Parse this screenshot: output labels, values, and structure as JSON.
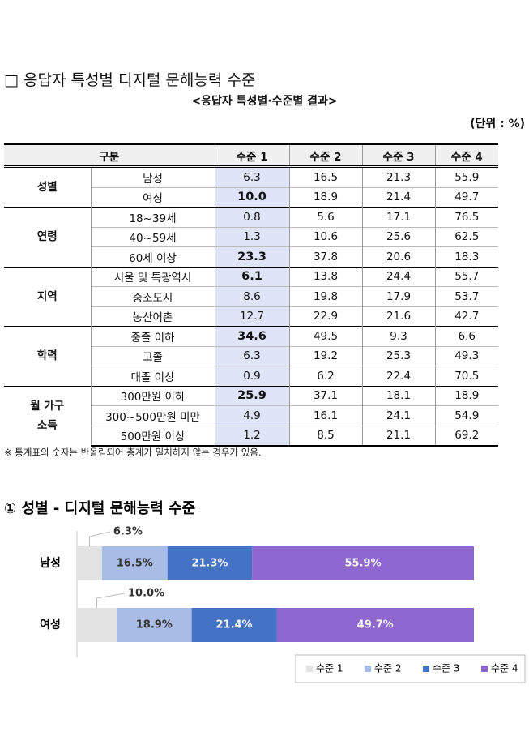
{
  "title": "□ 응답자 특성별 디지털 문해능력 수준",
  "table": {
    "caption": "<응답자 특성별·수준별 결과>",
    "unit": "(단위 : %)",
    "columns": [
      "구분",
      "수준 1",
      "수준 2",
      "수준 3",
      "수준 4"
    ],
    "groups": [
      {
        "label": [
          "성별"
        ],
        "rows": [
          {
            "label": "남성",
            "cells": [
              "6.3",
              "16.5",
              "21.3",
              "55.9"
            ],
            "emphasis": false
          },
          {
            "label": "여성",
            "cells": [
              "10.0",
              "18.9",
              "21.4",
              "49.7"
            ],
            "emphasis": true
          }
        ]
      },
      {
        "label": [
          "연령"
        ],
        "rows": [
          {
            "label": "18~39세",
            "cells": [
              "0.8",
              "5.6",
              "17.1",
              "76.5"
            ],
            "emphasis": false
          },
          {
            "label": "40~59세",
            "cells": [
              "1.3",
              "10.6",
              "25.6",
              "62.5"
            ],
            "emphasis": false
          },
          {
            "label": "60세 이상",
            "cells": [
              "23.3",
              "37.8",
              "20.6",
              "18.3"
            ],
            "emphasis": true
          }
        ]
      },
      {
        "label": [
          "지역"
        ],
        "rows": [
          {
            "label": "서울 및 특광역시",
            "cells": [
              "6.1",
              "13.8",
              "24.4",
              "55.7"
            ],
            "emphasis": true
          },
          {
            "label": "중소도시",
            "cells": [
              "8.6",
              "19.8",
              "17.9",
              "53.7"
            ],
            "emphasis": false
          },
          {
            "label": "농산어촌",
            "cells": [
              "12.7",
              "22.9",
              "21.6",
              "42.7"
            ],
            "emphasis": false
          }
        ]
      },
      {
        "label": [
          "학력"
        ],
        "rows": [
          {
            "label": "중졸 이하",
            "cells": [
              "34.6",
              "49.5",
              "9.3",
              "6.6"
            ],
            "emphasis": true
          },
          {
            "label": "고졸",
            "cells": [
              "6.3",
              "19.2",
              "25.3",
              "49.3"
            ],
            "emphasis": false
          },
          {
            "label": "대졸 이상",
            "cells": [
              "0.9",
              "6.2",
              "22.4",
              "70.5"
            ],
            "emphasis": false
          }
        ]
      },
      {
        "label": [
          "월 가구",
          "소득"
        ],
        "rows": [
          {
            "label": "300만원 이하",
            "cells": [
              "25.9",
              "37.1",
              "18.1",
              "18.9"
            ],
            "emphasis": true
          },
          {
            "label": "300~500만원 미만",
            "cells": [
              "4.9",
              "16.1",
              "24.1",
              "54.9"
            ],
            "emphasis": false
          },
          {
            "label": "500만원 이상",
            "cells": [
              "1.2",
              "8.5",
              "21.1",
              "69.2"
            ],
            "emphasis": false
          }
        ]
      }
    ]
  },
  "note": "※ 통계표의 숫자는 반올림되어 총계가 일치하지 않는 경우가 있음.",
  "chart_data": {
    "type": "bar",
    "orientation": "horizontal",
    "stacked": true,
    "title": "① 성별 - 디지털 문해능력 수준",
    "categories": [
      "남성",
      "여성"
    ],
    "xlim": [
      0,
      100
    ],
    "legend": "bottom-right",
    "series": [
      {
        "name": "수준 1",
        "color": "#e3e3e3",
        "values": [
          6.3,
          10.0
        ],
        "value_labels": [
          "6.3%",
          "10.0%"
        ]
      },
      {
        "name": "수준 2",
        "color": "#a9bce6",
        "values": [
          16.5,
          18.9
        ],
        "value_labels": [
          "16.5%",
          "18.9%"
        ]
      },
      {
        "name": "수준 3",
        "color": "#4472c4",
        "values": [
          21.3,
          21.4
        ],
        "value_labels": [
          "21.3%",
          "21.4%"
        ]
      },
      {
        "name": "수준 4",
        "color": "#8e67d0",
        "values": [
          55.9,
          49.7
        ],
        "value_labels": [
          "55.9%",
          "49.7%"
        ]
      }
    ]
  }
}
